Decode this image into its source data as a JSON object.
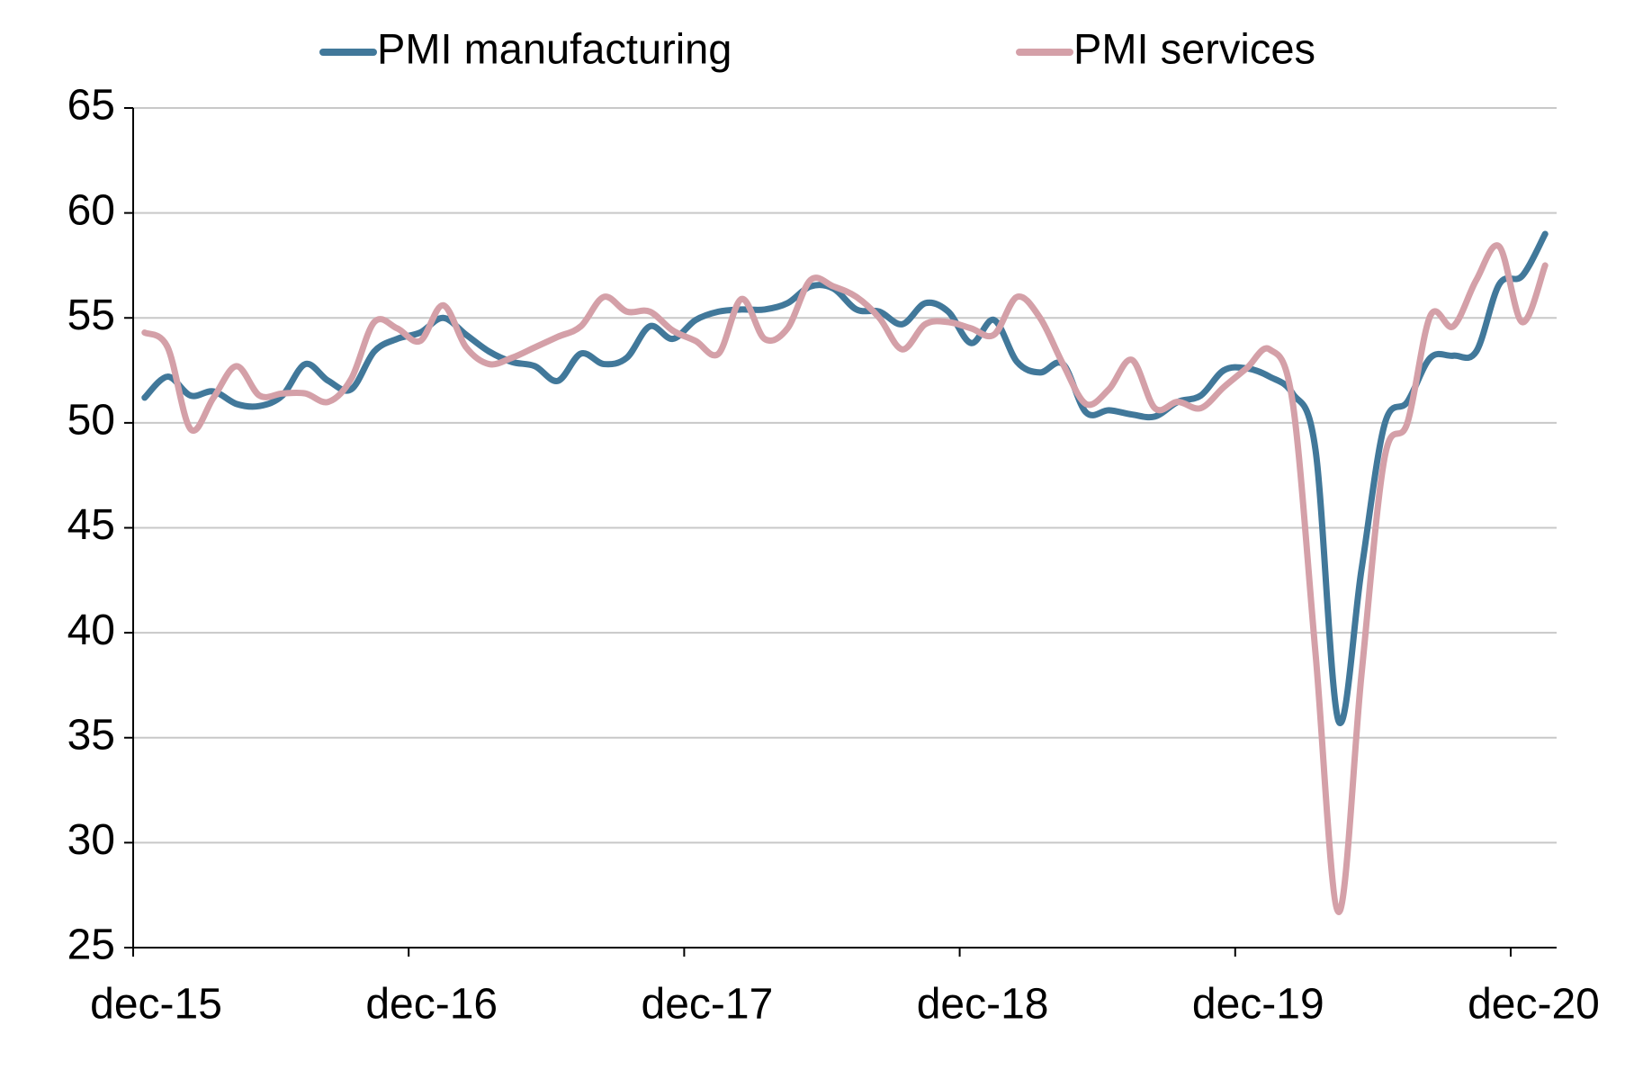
{
  "chart_data": {
    "type": "line",
    "categories": [
      "dec-15",
      null,
      null,
      null,
      null,
      null,
      null,
      null,
      null,
      null,
      null,
      null,
      "dec-16",
      null,
      null,
      null,
      null,
      null,
      null,
      null,
      null,
      null,
      null,
      null,
      "dec-17",
      null,
      null,
      null,
      null,
      null,
      null,
      null,
      null,
      null,
      null,
      null,
      "dec-18",
      null,
      null,
      null,
      null,
      null,
      null,
      null,
      null,
      null,
      null,
      null,
      "dec-19",
      null,
      null,
      null,
      null,
      null,
      null,
      null,
      null,
      null,
      null,
      null,
      "dec-20",
      null
    ],
    "series": [
      {
        "name": "PMI manufacturing",
        "color": "#41789a",
        "values": [
          51.2,
          52.2,
          51.3,
          51.5,
          50.9,
          50.8,
          51.3,
          52.8,
          52.0,
          51.6,
          53.4,
          54.0,
          54.3,
          55.0,
          54.2,
          53.4,
          52.9,
          52.7,
          52.0,
          53.3,
          52.8,
          53.1,
          54.6,
          54.0,
          54.9,
          55.3,
          55.4,
          55.4,
          55.7,
          56.5,
          56.4,
          55.4,
          55.3,
          54.7,
          55.7,
          55.3,
          53.8,
          54.9,
          52.9,
          52.4,
          52.8,
          50.5,
          50.6,
          50.4,
          50.3,
          51.0,
          51.3,
          52.5,
          52.6,
          52.2,
          51.4,
          48.7,
          35.8,
          43.0,
          49.9,
          51.0,
          53.1,
          53.2,
          53.4,
          56.6,
          57.0,
          59.0
        ]
      },
      {
        "name": "PMI services",
        "color": "#d4a0a8",
        "values": [
          54.3,
          53.6,
          49.7,
          51.2,
          52.7,
          51.3,
          51.4,
          51.4,
          51.0,
          52.1,
          54.8,
          54.5,
          53.9,
          55.6,
          53.6,
          52.8,
          53.1,
          53.6,
          54.1,
          54.6,
          56.0,
          55.3,
          55.3,
          54.4,
          53.9,
          53.3,
          55.9,
          54.0,
          54.5,
          56.8,
          56.5,
          56.0,
          55.0,
          53.5,
          54.7,
          54.8,
          54.5,
          54.2,
          56.0,
          55.0,
          52.8,
          50.9,
          51.6,
          53.0,
          50.7,
          51.0,
          50.7,
          51.7,
          52.6,
          53.5,
          51.0,
          39.0,
          26.7,
          38.0,
          48.3,
          50.0,
          55.1,
          54.6,
          56.8,
          58.4,
          54.8,
          57.5
        ]
      }
    ],
    "ylim": [
      25,
      65
    ],
    "yticks": [
      25,
      30,
      35,
      40,
      45,
      50,
      55,
      60,
      65
    ],
    "grid": true,
    "legend": "top"
  }
}
